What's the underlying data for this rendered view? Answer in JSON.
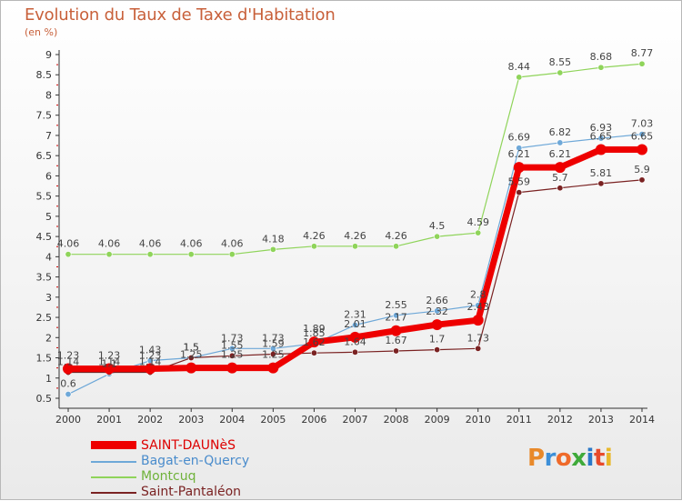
{
  "title": "Evolution du Taux de Taxe d'Habitation",
  "unit": "(en %)",
  "logo": {
    "text": "Proxiti",
    "letters": [
      "P",
      "r",
      "o",
      "x",
      "i",
      "t",
      "i"
    ]
  },
  "colors": {
    "title": "#c8603a",
    "axis": "#333333",
    "grid_marks": "#cc0000"
  },
  "chart_data": {
    "type": "line",
    "title": "Evolution du Taux de Taxe d'Habitation",
    "ylabel": "(en %)",
    "xlabel": "",
    "x": [
      2000,
      2001,
      2002,
      2003,
      2004,
      2005,
      2006,
      2007,
      2008,
      2009,
      2010,
      2011,
      2012,
      2013,
      2014
    ],
    "ylim": [
      0.5,
      9
    ],
    "yticks": [
      0.5,
      1,
      1.5,
      2,
      2.5,
      3,
      3.5,
      4,
      4.5,
      5,
      5.5,
      6,
      6.5,
      7,
      7.5,
      8,
      8.5,
      9
    ],
    "ytick_labels": [
      "0.5",
      "1",
      "1.5",
      "2",
      "2.5",
      "3",
      "3.5",
      "4",
      "4.5",
      "5",
      "5.5",
      "6",
      "6.5",
      "7",
      "7.5",
      "8",
      "8.5",
      "9"
    ],
    "legend_position": "bottom-left",
    "series": [
      {
        "name": "Montcuq",
        "color": "#8fd45a",
        "width": 1.2,
        "marker": 3.2,
        "values": [
          4.06,
          4.06,
          4.06,
          4.06,
          4.06,
          4.18,
          4.26,
          4.26,
          4.26,
          4.5,
          4.59,
          8.44,
          8.55,
          8.68,
          8.77
        ],
        "labels": [
          "4.06",
          "4.06",
          "4.06",
          "4.06",
          "4.06",
          "4.18",
          "4.26",
          "4.26",
          "4.26",
          "4.5",
          "4.59",
          "8.44",
          "8.55",
          "8.68",
          "8.77"
        ]
      },
      {
        "name": "Bagat-en-Quercy",
        "color": "#6ea8d8",
        "width": 1.2,
        "marker": 3.2,
        "values": [
          0.6,
          1.1,
          1.43,
          1.5,
          1.73,
          1.73,
          1.85,
          2.31,
          2.55,
          2.66,
          2.8,
          6.69,
          6.82,
          6.93,
          7.03
        ],
        "labels": [
          "0.6",
          "1.1",
          "1.43",
          "1.5",
          "1.73",
          "1.73",
          "1.85",
          "2.31",
          "2.55",
          "2.66",
          "2.8",
          "6.69",
          "6.82",
          "6.93",
          "7.03"
        ]
      },
      {
        "name": "Saint-Pantaléon",
        "color": "#7a2222",
        "width": 1.2,
        "marker": 3.2,
        "values": [
          1.14,
          1.14,
          1.14,
          1.5,
          1.55,
          1.59,
          1.62,
          1.64,
          1.67,
          1.7,
          1.73,
          5.59,
          5.7,
          5.81,
          5.9
        ],
        "labels": [
          "1.14",
          "1.14",
          "1.14",
          "1.5",
          "1.55",
          "1.59",
          "1.62",
          "1.64",
          "1.67",
          "1.7",
          "1.73",
          "5.59",
          "5.7",
          "5.81",
          "5.9"
        ]
      },
      {
        "name": "SAINT-DAUNèS",
        "color": "#ee0000",
        "width": 7,
        "marker": 6,
        "values": [
          1.23,
          1.23,
          1.23,
          1.25,
          1.25,
          1.25,
          1.89,
          2.01,
          2.17,
          2.32,
          2.43,
          6.21,
          6.21,
          6.65,
          6.65
        ],
        "labels": [
          "1.23",
          "1.23",
          "1.23",
          "1.25",
          "1.25",
          "1.25",
          "1.89",
          "2.01",
          "2.17",
          "2.32",
          "2.43",
          "6.21",
          "6.21",
          "6.65",
          "6.65"
        ]
      }
    ]
  },
  "legend": {
    "entries": [
      {
        "label": "SAINT-DAUNèS",
        "color": "#ee0000",
        "thick": true
      },
      {
        "label": "Bagat-en-Quercy",
        "color": "#6ea8d8",
        "thick": false
      },
      {
        "label": "Montcuq",
        "color": "#8fd45a",
        "thick": false
      },
      {
        "label": "Saint-Pantaléon",
        "color": "#7a2222",
        "thick": false
      }
    ]
  }
}
